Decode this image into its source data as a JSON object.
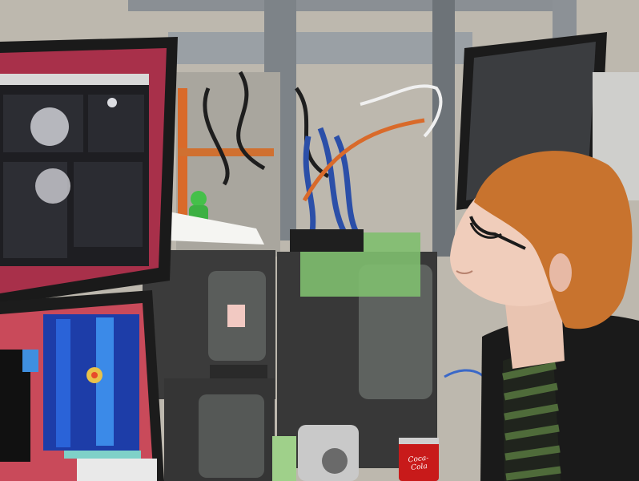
{
  "photo": {
    "can_logo": "Coca-Cola",
    "colors": {
      "lab_background": "#b9b4aa",
      "upper_monitor_screen": "#a8304a",
      "lower_monitor_screen": "#c94a5a",
      "hair": "#c8732e",
      "jacket": "#1a1a1a",
      "shirt_stripe_green": "#4f6b3a",
      "shirt_stripe_dark": "#20241d",
      "can_red": "#c81a1a",
      "crt_monitor": "#3a3a3a",
      "cable_blue": "#2b4fa8",
      "cable_orange": "#d96a2a",
      "tape_green": "#7fbf6f"
    }
  }
}
